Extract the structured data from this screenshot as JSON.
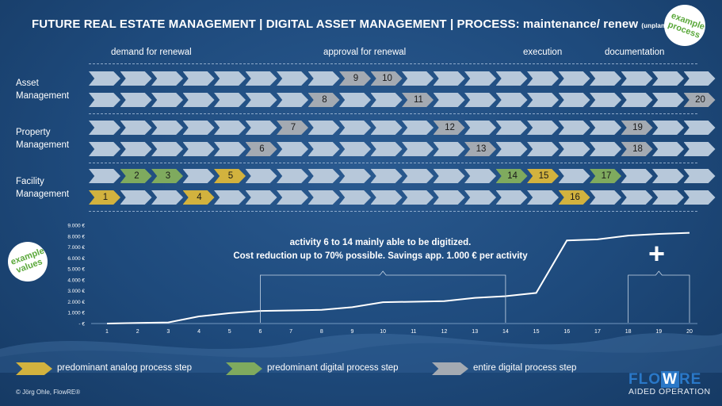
{
  "title": {
    "main": "FUTURE REAL ESTATE MANAGEMENT | DIGITAL ASSET MANAGEMENT | PROCESS: maintenance/ renew ",
    "suffix": "(unplanned)"
  },
  "badges": {
    "process": "example process",
    "values": "example values"
  },
  "phases": [
    "demand for renewal",
    "approval for renewal",
    "execution",
    "documentation"
  ],
  "rows": [
    {
      "label": "Asset Management"
    },
    {
      "label": "Property Management"
    },
    {
      "label": "Facility Management"
    }
  ],
  "colors": {
    "analog": "#d2b23e",
    "digital": "#7faa5e",
    "entire_digital": "#a4aab2",
    "empty": "#b7c8da"
  },
  "steps": [
    {
      "n": "1",
      "lane": 5,
      "col": 0,
      "type": "analog"
    },
    {
      "n": "2",
      "lane": 4,
      "col": 1,
      "type": "digital"
    },
    {
      "n": "3",
      "lane": 4,
      "col": 2,
      "type": "digital"
    },
    {
      "n": "4",
      "lane": 5,
      "col": 3,
      "type": "analog"
    },
    {
      "n": "5",
      "lane": 4,
      "col": 4,
      "type": "analog"
    },
    {
      "n": "6",
      "lane": 3,
      "col": 5,
      "type": "entire_digital"
    },
    {
      "n": "7",
      "lane": 2,
      "col": 6,
      "type": "entire_digital"
    },
    {
      "n": "8",
      "lane": 1,
      "col": 7,
      "type": "entire_digital"
    },
    {
      "n": "9",
      "lane": 0,
      "col": 8,
      "type": "entire_digital"
    },
    {
      "n": "10",
      "lane": 0,
      "col": 9,
      "type": "entire_digital"
    },
    {
      "n": "11",
      "lane": 1,
      "col": 10,
      "type": "entire_digital"
    },
    {
      "n": "12",
      "lane": 2,
      "col": 11,
      "type": "entire_digital"
    },
    {
      "n": "13",
      "lane": 3,
      "col": 12,
      "type": "entire_digital"
    },
    {
      "n": "14",
      "lane": 4,
      "col": 13,
      "type": "digital"
    },
    {
      "n": "15",
      "lane": 4,
      "col": 14,
      "type": "analog"
    },
    {
      "n": "16",
      "lane": 5,
      "col": 15,
      "type": "analog"
    },
    {
      "n": "17",
      "lane": 4,
      "col": 16,
      "type": "digital"
    },
    {
      "n": "18",
      "lane": 3,
      "col": 17,
      "type": "entire_digital"
    },
    {
      "n": "19",
      "lane": 2,
      "col": 17,
      "type": "entire_digital"
    },
    {
      "n": "20",
      "lane": 1,
      "col": 19,
      "type": "entire_digital"
    }
  ],
  "chart_data": {
    "type": "line",
    "x": [
      1,
      2,
      3,
      4,
      5,
      6,
      7,
      8,
      9,
      10,
      11,
      12,
      13,
      14,
      15,
      16,
      17,
      18,
      19,
      20
    ],
    "y": [
      0,
      50,
      100,
      650,
      950,
      1150,
      1200,
      1250,
      1500,
      1950,
      2000,
      2050,
      2350,
      2500,
      2800,
      7600,
      7700,
      8050,
      8200,
      8300
    ],
    "yticks": [
      "- €",
      "1.000 €",
      "2.000 €",
      "3.000 €",
      "4.000 €",
      "5.000 €",
      "6.000 €",
      "7.000 €",
      "8.000 €",
      "9.000 €"
    ],
    "ylim": [
      0,
      9000
    ],
    "xlim": [
      1,
      20
    ],
    "bracket": {
      "from": 6,
      "to": 14
    },
    "bracket_plus": {
      "from": 18,
      "to": 20
    }
  },
  "annotation": {
    "line1": "activity 6 to 14 mainly able to be digitized.",
    "line2": "Cost reduction up to 70% possible. Savings app. 1.000 € per activity"
  },
  "plus": "+",
  "legend": [
    {
      "label": "predominant analog process step",
      "type": "analog"
    },
    {
      "label": "predominant digital process step",
      "type": "digital"
    },
    {
      "label": "entire digital process step",
      "type": "entire_digital"
    }
  ],
  "footer": "© Jörg Ohle, FlowRE®",
  "logo": {
    "part1": "FLO",
    "part2": "W",
    "part3": "RE",
    "tagline": "AIDED OPERATION"
  }
}
